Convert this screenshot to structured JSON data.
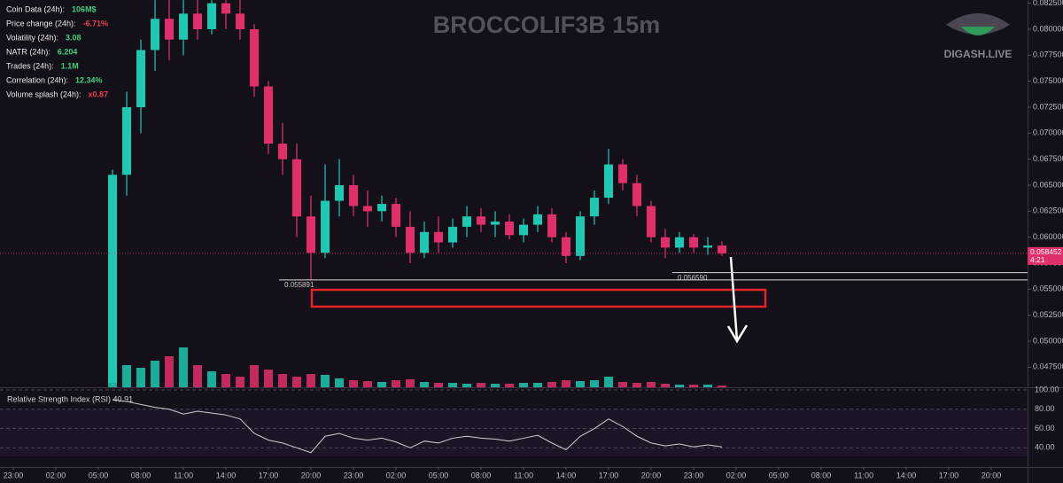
{
  "chart_data": {
    "type": "candlestick",
    "title": "BROCCOLIF3B 15m",
    "brand": "DIGASH.LIVE",
    "info": [
      {
        "label": "Coin Data (24h):",
        "value": "106M$",
        "color": "#3fd07a"
      },
      {
        "label": "Price change (24h):",
        "value": "-6.71%",
        "color": "#e8414f"
      },
      {
        "label": "Volatility (24h):",
        "value": "3.08",
        "color": "#3fd07a"
      },
      {
        "label": "NATR (24h):",
        "value": "6.204",
        "color": "#3fd07a"
      },
      {
        "label": "Trades (24h):",
        "value": "1.1M",
        "color": "#3fd07a"
      },
      {
        "label": "Correlation (24h):",
        "value": "12.34%",
        "color": "#3fd07a"
      },
      {
        "label": "Volume splash (24h):",
        "value": "x0.87",
        "color": "#e8414f"
      }
    ],
    "up_color": "#1fc8b0",
    "down_color": "#e0306b",
    "x": [
      7,
      8,
      9,
      10,
      11,
      12,
      13,
      14,
      15,
      16,
      17,
      18,
      19,
      20,
      21,
      22,
      23,
      24,
      25,
      26,
      27,
      28,
      29,
      30,
      31,
      32,
      33,
      34,
      35,
      36,
      37,
      38,
      39,
      40,
      41,
      42,
      43,
      44,
      45,
      46,
      47,
      48,
      49,
      50
    ],
    "open": [
      0.046,
      0.066,
      0.0725,
      0.078,
      0.081,
      0.079,
      0.0815,
      0.08,
      0.0825,
      0.0815,
      0.08,
      0.0745,
      0.069,
      0.0675,
      0.062,
      0.0585,
      0.0635,
      0.065,
      0.063,
      0.0625,
      0.0632,
      0.061,
      0.0585,
      0.0605,
      0.0595,
      0.061,
      0.062,
      0.0612,
      0.0615,
      0.0602,
      0.0612,
      0.0622,
      0.06,
      0.0582,
      0.062,
      0.0638,
      0.067,
      0.0652,
      0.063,
      0.06,
      0.059,
      0.06,
      0.059,
      0.0592
    ],
    "high": [
      0.0665,
      0.074,
      0.079,
      0.0828,
      0.0828,
      0.0828,
      0.0828,
      0.0828,
      0.0828,
      0.0828,
      0.0805,
      0.075,
      0.071,
      0.069,
      0.064,
      0.067,
      0.0675,
      0.066,
      0.0645,
      0.064,
      0.0638,
      0.0625,
      0.0615,
      0.062,
      0.0618,
      0.063,
      0.0628,
      0.0625,
      0.0622,
      0.0618,
      0.063,
      0.0628,
      0.0605,
      0.0625,
      0.0645,
      0.0685,
      0.0675,
      0.066,
      0.0635,
      0.0608,
      0.0605,
      0.0603,
      0.06,
      0.0596
    ],
    "low": [
      0.0458,
      0.064,
      0.07,
      0.076,
      0.077,
      0.0775,
      0.079,
      0.0795,
      0.08,
      0.079,
      0.0735,
      0.068,
      0.066,
      0.06,
      0.0559,
      0.058,
      0.062,
      0.062,
      0.061,
      0.0615,
      0.06,
      0.0575,
      0.058,
      0.0585,
      0.059,
      0.06,
      0.0605,
      0.06,
      0.0598,
      0.0595,
      0.0605,
      0.0595,
      0.0575,
      0.0578,
      0.0612,
      0.0632,
      0.0645,
      0.062,
      0.0595,
      0.058,
      0.0585,
      0.0585,
      0.0583,
      0.0582
    ],
    "close": [
      0.066,
      0.0725,
      0.078,
      0.081,
      0.079,
      0.0815,
      0.08,
      0.0825,
      0.0815,
      0.08,
      0.0745,
      0.069,
      0.0675,
      0.062,
      0.0585,
      0.0635,
      0.065,
      0.063,
      0.0625,
      0.0632,
      0.061,
      0.0585,
      0.0605,
      0.0595,
      0.061,
      0.062,
      0.0612,
      0.0615,
      0.0602,
      0.0612,
      0.0622,
      0.06,
      0.0582,
      0.062,
      0.0638,
      0.067,
      0.0652,
      0.063,
      0.06,
      0.059,
      0.06,
      0.059,
      0.0592,
      0.058452
    ],
    "volume": [
      20,
      25,
      22,
      30,
      35,
      45,
      25,
      18,
      15,
      12,
      25,
      20,
      15,
      12,
      15,
      14,
      10,
      8,
      7,
      6,
      8,
      9,
      6,
      5,
      5,
      4,
      5,
      4,
      4,
      5,
      5,
      6,
      8,
      7,
      8,
      12,
      6,
      5,
      6,
      4,
      3,
      3,
      3,
      2
    ],
    "vlim": [
      0,
      100
    ],
    "xlim": [
      -0.94,
      71.56
    ],
    "xticks": [
      {
        "value": 0,
        "label": "23:00"
      },
      {
        "value": 3,
        "label": "02:00"
      },
      {
        "value": 6,
        "label": "05:00"
      },
      {
        "value": 9,
        "label": "08:00"
      },
      {
        "value": 12,
        "label": "11:00"
      },
      {
        "value": 15,
        "label": "14:00"
      },
      {
        "value": 18,
        "label": "17:00"
      },
      {
        "value": 21,
        "label": "20:00"
      },
      {
        "value": 24,
        "label": "23:00"
      },
      {
        "value": 27,
        "label": "02:00"
      },
      {
        "value": 30,
        "label": "05:00"
      },
      {
        "value": 33,
        "label": "08:00"
      },
      {
        "value": 36,
        "label": "11:00"
      },
      {
        "value": 39,
        "label": "14:00"
      },
      {
        "value": 42,
        "label": "17:00"
      },
      {
        "value": 45,
        "label": "20:00"
      },
      {
        "value": 48,
        "label": "23:00"
      },
      {
        "value": 51,
        "label": "02:00"
      },
      {
        "value": 54,
        "label": "05:00"
      },
      {
        "value": 57,
        "label": "08:00"
      },
      {
        "value": 60,
        "label": "11:00"
      },
      {
        "value": 63,
        "label": "14:00"
      },
      {
        "value": 66,
        "label": "17:00"
      },
      {
        "value": 69,
        "label": "20:00"
      }
    ],
    "ylim": [
      0.04557,
      0.08281
    ],
    "yticks": [
      {
        "value": 0.0475,
        "label": "0.047500"
      },
      {
        "value": 0.05,
        "label": "0.050000"
      },
      {
        "value": 0.0525,
        "label": "0.052500"
      },
      {
        "value": 0.055,
        "label": "0.055000"
      },
      {
        "value": 0.0575,
        "label": "0.057500"
      },
      {
        "value": 0.06,
        "label": "0.060000"
      },
      {
        "value": 0.0625,
        "label": "0.062500"
      },
      {
        "value": 0.065,
        "label": "0.065000"
      },
      {
        "value": 0.0675,
        "label": "0.067500"
      },
      {
        "value": 0.07,
        "label": "0.070000"
      },
      {
        "value": 0.0725,
        "label": "0.072500"
      },
      {
        "value": 0.075,
        "label": "0.075000"
      },
      {
        "value": 0.0775,
        "label": "0.077500"
      },
      {
        "value": 0.08,
        "label": "0.080000"
      },
      {
        "value": 0.0825,
        "label": "0.082500"
      }
    ],
    "levels": [
      {
        "value": 0.055891,
        "from": 18.75
      },
      {
        "value": {
          "value": 0.05659,
          "label": "0.056590"
        },
        "from": 46.5
      }
    ],
    "last_price": 0.058452,
    "countdown": "4:21",
    "rsi": {
      "title": "Relative Strength Index (RSI) 40.91",
      "color": "#cfcfcf",
      "values": [
        90,
        88,
        85,
        82,
        80,
        75,
        78,
        76,
        74,
        70,
        55,
        48,
        45,
        40,
        35,
        52,
        55,
        50,
        48,
        50,
        46,
        40,
        47,
        45,
        50,
        52,
        50,
        49,
        47,
        50,
        53,
        45,
        38,
        52,
        60,
        70,
        62,
        52,
        45,
        42,
        44,
        41,
        43,
        41
      ],
      "ylim": [
        21,
        100
      ],
      "yticks": [
        {
          "value": 100,
          "label": "100.00"
        },
        {
          "value": 80,
          "label": "80.00"
        },
        {
          "value": 60,
          "label": "60.00"
        },
        {
          "value": 40,
          "label": "40.00"
        }
      ]
    }
  }
}
